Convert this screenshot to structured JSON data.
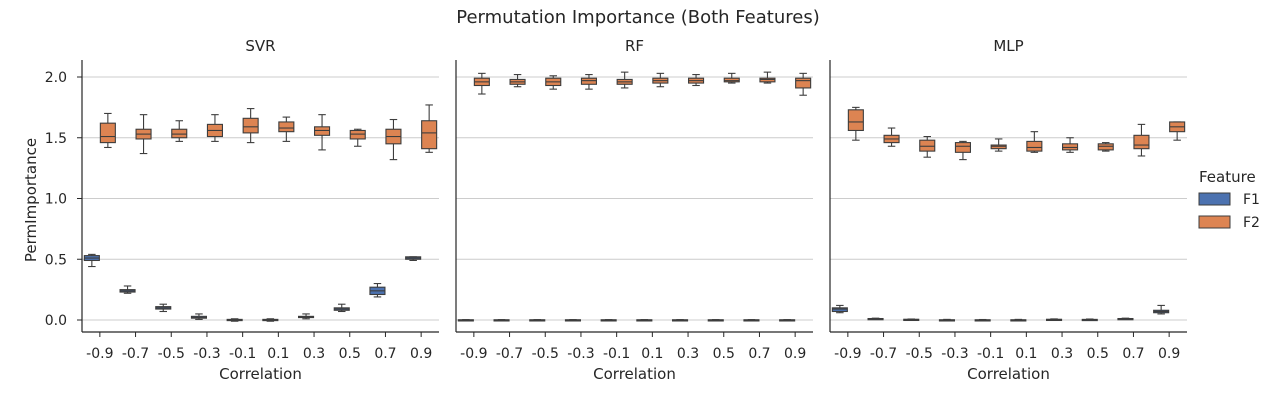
{
  "chart_data": {
    "type": "box",
    "title": "Permutation Importance (Both Features)",
    "ylabel": "PermImportance",
    "xlabel": "Correlation",
    "categories": [
      "-0.9",
      "-0.7",
      "-0.5",
      "-0.3",
      "-0.1",
      "0.1",
      "0.3",
      "0.5",
      "0.7",
      "0.9"
    ],
    "ylim": [
      -0.1,
      2.15
    ],
    "yticks": [
      "0.0",
      "0.5",
      "1.0",
      "1.5",
      "2.0"
    ],
    "grid": "horizontal",
    "legend": {
      "title": "Feature",
      "placement": "right",
      "entries": [
        {
          "name": "F1",
          "color": "#4c72b0"
        },
        {
          "name": "F2",
          "color": "#dd8452"
        }
      ]
    },
    "panels": [
      {
        "title": "SVR",
        "series": [
          {
            "name": "F1",
            "boxes": [
              [
                0.44,
                0.49,
                0.51,
                0.53,
                0.54
              ],
              [
                0.22,
                0.23,
                0.24,
                0.25,
                0.28
              ],
              [
                0.07,
                0.09,
                0.1,
                0.11,
                0.13
              ],
              [
                0.005,
                0.015,
                0.02,
                0.03,
                0.05
              ],
              [
                -0.01,
                -0.005,
                0.0,
                0.005,
                0.01
              ],
              [
                -0.01,
                -0.005,
                0.0,
                0.005,
                0.01
              ],
              [
                0.01,
                0.02,
                0.025,
                0.03,
                0.05
              ],
              [
                0.07,
                0.08,
                0.09,
                0.1,
                0.13
              ],
              [
                0.19,
                0.21,
                0.24,
                0.27,
                0.3
              ],
              [
                0.49,
                0.5,
                0.51,
                0.52,
                0.52
              ]
            ]
          },
          {
            "name": "F2",
            "boxes": [
              [
                1.42,
                1.46,
                1.51,
                1.62,
                1.7
              ],
              [
                1.37,
                1.49,
                1.53,
                1.57,
                1.69
              ],
              [
                1.47,
                1.5,
                1.53,
                1.57,
                1.64
              ],
              [
                1.47,
                1.51,
                1.56,
                1.61,
                1.69
              ],
              [
                1.46,
                1.54,
                1.59,
                1.66,
                1.74
              ],
              [
                1.47,
                1.55,
                1.58,
                1.63,
                1.67
              ],
              [
                1.4,
                1.52,
                1.56,
                1.59,
                1.69
              ],
              [
                1.43,
                1.49,
                1.53,
                1.56,
                1.57
              ],
              [
                1.32,
                1.45,
                1.51,
                1.57,
                1.65
              ],
              [
                1.38,
                1.41,
                1.54,
                1.64,
                1.77
              ]
            ]
          }
        ]
      },
      {
        "title": "RF",
        "series": [
          {
            "name": "F1",
            "boxes": [
              [
                -0.003,
                -0.002,
                0.0,
                0.002,
                0.003
              ],
              [
                -0.003,
                -0.002,
                0.0,
                0.002,
                0.003
              ],
              [
                -0.003,
                -0.002,
                0.0,
                0.002,
                0.003
              ],
              [
                -0.003,
                -0.002,
                0.0,
                0.002,
                0.003
              ],
              [
                -0.003,
                -0.002,
                0.0,
                0.002,
                0.003
              ],
              [
                -0.003,
                -0.002,
                0.0,
                0.002,
                0.003
              ],
              [
                -0.003,
                -0.002,
                0.0,
                0.002,
                0.003
              ],
              [
                -0.003,
                -0.002,
                0.0,
                0.002,
                0.003
              ],
              [
                -0.003,
                -0.002,
                0.0,
                0.002,
                0.003
              ],
              [
                -0.003,
                -0.002,
                0.0,
                0.002,
                0.003
              ]
            ]
          },
          {
            "name": "F2",
            "boxes": [
              [
                1.86,
                1.93,
                1.96,
                1.99,
                2.03
              ],
              [
                1.92,
                1.94,
                1.96,
                1.98,
                2.02
              ],
              [
                1.9,
                1.93,
                1.96,
                1.99,
                2.01
              ],
              [
                1.9,
                1.94,
                1.97,
                1.99,
                2.02
              ],
              [
                1.91,
                1.94,
                1.96,
                1.98,
                2.04
              ],
              [
                1.92,
                1.95,
                1.97,
                1.99,
                2.03
              ],
              [
                1.93,
                1.95,
                1.97,
                1.99,
                2.02
              ],
              [
                1.95,
                1.96,
                1.97,
                1.99,
                2.03
              ],
              [
                1.95,
                1.96,
                1.98,
                1.99,
                2.04
              ],
              [
                1.85,
                1.91,
                1.97,
                1.99,
                2.03
              ]
            ]
          }
        ]
      },
      {
        "title": "MLP",
        "series": [
          {
            "name": "F1",
            "boxes": [
              [
                0.06,
                0.07,
                0.09,
                0.1,
                0.12
              ],
              [
                0.005,
                0.008,
                0.01,
                0.012,
                0.015
              ],
              [
                -0.002,
                0.002,
                0.004,
                0.006,
                0.008
              ],
              [
                -0.005,
                -0.002,
                0.0,
                0.002,
                0.005
              ],
              [
                -0.005,
                -0.003,
                0.0,
                0.002,
                0.004
              ],
              [
                -0.004,
                -0.002,
                0.0,
                0.002,
                0.005
              ],
              [
                -0.002,
                0.0,
                0.003,
                0.006,
                0.009
              ],
              [
                -0.002,
                0.001,
                0.003,
                0.005,
                0.008
              ],
              [
                0.005,
                0.008,
                0.01,
                0.012,
                0.015
              ],
              [
                0.05,
                0.06,
                0.07,
                0.08,
                0.12
              ]
            ]
          },
          {
            "name": "F2",
            "boxes": [
              [
                1.48,
                1.56,
                1.63,
                1.73,
                1.75
              ],
              [
                1.43,
                1.46,
                1.49,
                1.52,
                1.58
              ],
              [
                1.34,
                1.39,
                1.43,
                1.48,
                1.51
              ],
              [
                1.32,
                1.38,
                1.43,
                1.46,
                1.47
              ],
              [
                1.39,
                1.41,
                1.43,
                1.44,
                1.49
              ],
              [
                1.38,
                1.39,
                1.42,
                1.47,
                1.55
              ],
              [
                1.38,
                1.4,
                1.42,
                1.45,
                1.5
              ],
              [
                1.39,
                1.4,
                1.43,
                1.45,
                1.46
              ],
              [
                1.35,
                1.41,
                1.44,
                1.52,
                1.61
              ],
              [
                1.48,
                1.55,
                1.59,
                1.63,
                1.63
              ]
            ]
          }
        ]
      }
    ]
  }
}
